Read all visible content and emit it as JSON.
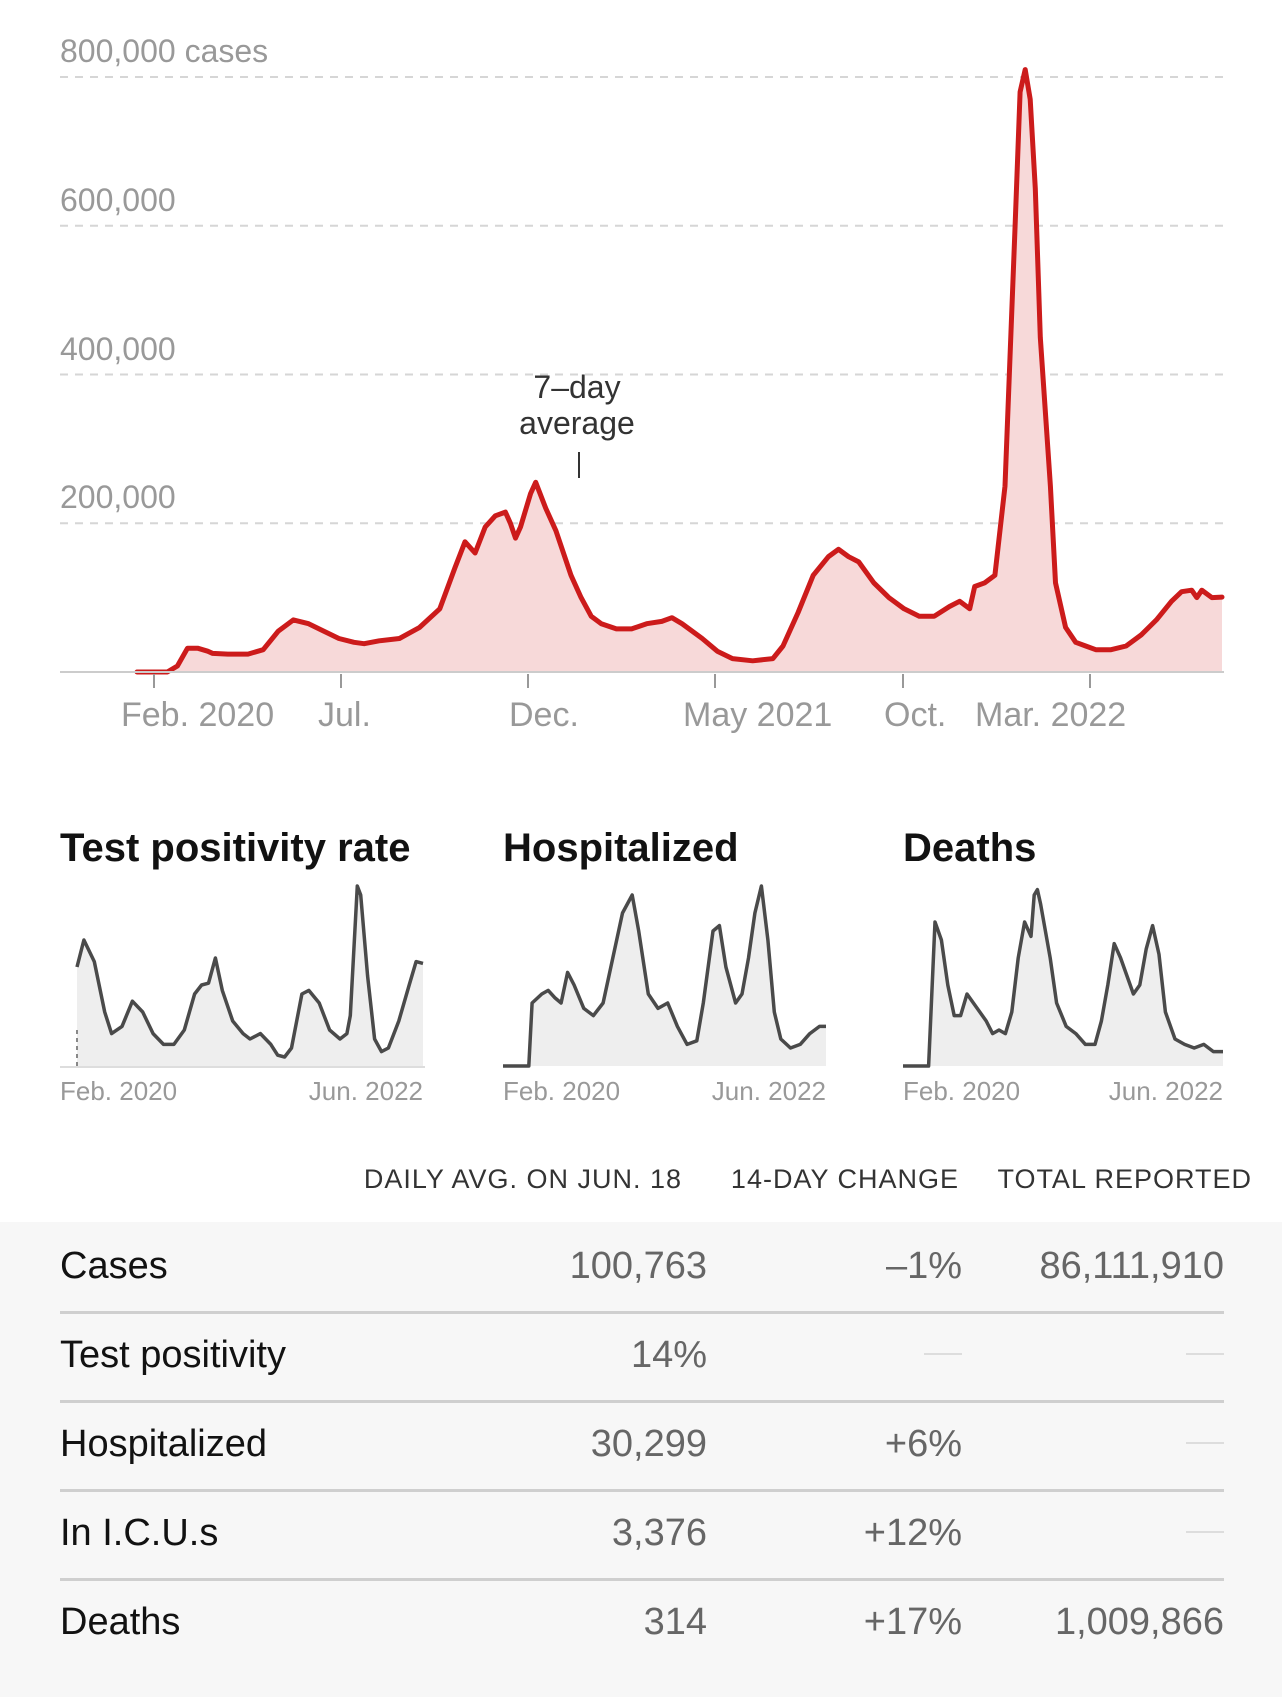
{
  "chart_data": [
    {
      "type": "area",
      "ylim": [
        0,
        800000
      ],
      "y_ticks": [
        {
          "value": 800000,
          "label": "800,000 cases"
        },
        {
          "value": 600000,
          "label": "600,000"
        },
        {
          "value": 400000,
          "label": "400,000"
        },
        {
          "value": 200000,
          "label": "200,000"
        }
      ],
      "x_ticks": [
        "Feb. 2020",
        "Jul.",
        "Dec.",
        "May 2021",
        "Oct.",
        "Mar. 2022"
      ],
      "annotation": {
        "line1": "7–day",
        "line2": "average"
      },
      "colors": {
        "line": "#cc1b1b",
        "fill": "#f7d9d9",
        "grid": "#d6d6d6",
        "tick_text": "#999999"
      },
      "points": [
        [
          0,
          0
        ],
        [
          0.04,
          0
        ],
        [
          0.06,
          0
        ],
        [
          0.08,
          8000
        ],
        [
          0.1,
          32000
        ],
        [
          0.12,
          32000
        ],
        [
          0.14,
          28000
        ],
        [
          0.15,
          25000
        ],
        [
          0.18,
          24000
        ],
        [
          0.22,
          24000
        ],
        [
          0.25,
          30000
        ],
        [
          0.28,
          55000
        ],
        [
          0.31,
          70000
        ],
        [
          0.34,
          65000
        ],
        [
          0.37,
          55000
        ],
        [
          0.4,
          45000
        ],
        [
          0.43,
          40000
        ],
        [
          0.45,
          38000
        ],
        [
          0.48,
          42000
        ],
        [
          0.52,
          45000
        ],
        [
          0.56,
          60000
        ],
        [
          0.6,
          85000
        ],
        [
          0.63,
          140000
        ],
        [
          0.65,
          175000
        ],
        [
          0.67,
          160000
        ],
        [
          0.69,
          195000
        ],
        [
          0.71,
          210000
        ],
        [
          0.73,
          215000
        ],
        [
          0.74,
          200000
        ],
        [
          0.75,
          180000
        ],
        [
          0.76,
          195000
        ],
        [
          0.78,
          240000
        ],
        [
          0.79,
          255000
        ],
        [
          0.81,
          220000
        ],
        [
          0.83,
          190000
        ],
        [
          0.86,
          130000
        ],
        [
          0.88,
          100000
        ],
        [
          0.9,
          75000
        ],
        [
          0.92,
          65000
        ],
        [
          0.95,
          58000
        ],
        [
          0.98,
          58000
        ],
        [
          1.01,
          65000
        ],
        [
          1.04,
          68000
        ],
        [
          1.06,
          73000
        ],
        [
          1.08,
          65000
        ],
        [
          1.12,
          45000
        ],
        [
          1.15,
          28000
        ],
        [
          1.18,
          18000
        ],
        [
          1.22,
          15000
        ],
        [
          1.26,
          18000
        ],
        [
          1.28,
          35000
        ],
        [
          1.31,
          80000
        ],
        [
          1.34,
          130000
        ],
        [
          1.37,
          155000
        ],
        [
          1.39,
          165000
        ],
        [
          1.41,
          155000
        ],
        [
          1.43,
          148000
        ],
        [
          1.46,
          120000
        ],
        [
          1.49,
          100000
        ],
        [
          1.52,
          85000
        ],
        [
          1.55,
          75000
        ],
        [
          1.58,
          75000
        ],
        [
          1.61,
          88000
        ],
        [
          1.63,
          95000
        ],
        [
          1.65,
          85000
        ],
        [
          1.66,
          115000
        ],
        [
          1.68,
          120000
        ],
        [
          1.7,
          130000
        ],
        [
          1.72,
          250000
        ],
        [
          1.74,
          600000
        ],
        [
          1.75,
          780000
        ],
        [
          1.76,
          810000
        ],
        [
          1.77,
          770000
        ],
        [
          1.78,
          650000
        ],
        [
          1.79,
          450000
        ],
        [
          1.81,
          250000
        ],
        [
          1.82,
          120000
        ],
        [
          1.84,
          60000
        ],
        [
          1.86,
          40000
        ],
        [
          1.88,
          35000
        ],
        [
          1.9,
          30000
        ],
        [
          1.93,
          30000
        ],
        [
          1.96,
          35000
        ],
        [
          1.99,
          50000
        ],
        [
          2.02,
          70000
        ],
        [
          2.05,
          95000
        ],
        [
          2.07,
          108000
        ],
        [
          2.09,
          110000
        ],
        [
          2.1,
          100000
        ],
        [
          2.11,
          110000
        ],
        [
          2.13,
          100000
        ],
        [
          2.15,
          100763
        ]
      ],
      "x_domain": [
        -0.03,
        2.15
      ]
    },
    {
      "type": "area",
      "title": "Test positivity rate",
      "x_ticks": [
        "Feb. 2020",
        "Jun. 2022"
      ],
      "ylim": [
        0,
        100
      ],
      "colors": {
        "line": "#4a4a4a",
        "fill": "#eeeeee"
      },
      "points": [
        [
          0,
          55
        ],
        [
          0.02,
          70
        ],
        [
          0.05,
          58
        ],
        [
          0.08,
          30
        ],
        [
          0.1,
          18
        ],
        [
          0.13,
          22
        ],
        [
          0.16,
          36
        ],
        [
          0.19,
          30
        ],
        [
          0.22,
          18
        ],
        [
          0.25,
          12
        ],
        [
          0.28,
          12
        ],
        [
          0.31,
          20
        ],
        [
          0.34,
          40
        ],
        [
          0.36,
          45
        ],
        [
          0.38,
          46
        ],
        [
          0.4,
          60
        ],
        [
          0.42,
          42
        ],
        [
          0.45,
          25
        ],
        [
          0.48,
          18
        ],
        [
          0.5,
          15
        ],
        [
          0.53,
          18
        ],
        [
          0.56,
          12
        ],
        [
          0.58,
          6
        ],
        [
          0.6,
          5
        ],
        [
          0.62,
          10
        ],
        [
          0.65,
          40
        ],
        [
          0.67,
          42
        ],
        [
          0.7,
          35
        ],
        [
          0.73,
          20
        ],
        [
          0.76,
          15
        ],
        [
          0.78,
          18
        ],
        [
          0.79,
          28
        ],
        [
          0.81,
          100
        ],
        [
          0.82,
          95
        ],
        [
          0.84,
          50
        ],
        [
          0.86,
          15
        ],
        [
          0.88,
          8
        ],
        [
          0.9,
          10
        ],
        [
          0.93,
          25
        ],
        [
          0.96,
          45
        ],
        [
          0.98,
          58
        ],
        [
          1,
          57
        ]
      ]
    },
    {
      "type": "area",
      "title": "Hospitalized",
      "x_ticks": [
        "Feb. 2020",
        "Jun. 2022"
      ],
      "ylim": [
        0,
        100
      ],
      "colors": {
        "line": "#4a4a4a",
        "fill": "#eeeeee"
      },
      "points": [
        [
          0,
          0
        ],
        [
          0.08,
          0
        ],
        [
          0.09,
          35
        ],
        [
          0.12,
          40
        ],
        [
          0.14,
          42
        ],
        [
          0.16,
          38
        ],
        [
          0.18,
          35
        ],
        [
          0.2,
          52
        ],
        [
          0.22,
          45
        ],
        [
          0.25,
          32
        ],
        [
          0.28,
          28
        ],
        [
          0.31,
          35
        ],
        [
          0.34,
          60
        ],
        [
          0.37,
          85
        ],
        [
          0.4,
          95
        ],
        [
          0.42,
          75
        ],
        [
          0.45,
          40
        ],
        [
          0.48,
          32
        ],
        [
          0.51,
          35
        ],
        [
          0.54,
          22
        ],
        [
          0.57,
          12
        ],
        [
          0.6,
          14
        ],
        [
          0.62,
          35
        ],
        [
          0.65,
          75
        ],
        [
          0.67,
          78
        ],
        [
          0.69,
          55
        ],
        [
          0.72,
          35
        ],
        [
          0.74,
          40
        ],
        [
          0.76,
          60
        ],
        [
          0.78,
          85
        ],
        [
          0.8,
          100
        ],
        [
          0.82,
          70
        ],
        [
          0.84,
          30
        ],
        [
          0.86,
          15
        ],
        [
          0.89,
          10
        ],
        [
          0.92,
          12
        ],
        [
          0.95,
          18
        ],
        [
          0.98,
          22
        ],
        [
          1,
          22
        ]
      ]
    },
    {
      "type": "area",
      "title": "Deaths",
      "x_ticks": [
        "Feb. 2020",
        "Jun. 2022"
      ],
      "ylim": [
        0,
        100
      ],
      "colors": {
        "line": "#4a4a4a",
        "fill": "#eeeeee"
      },
      "points": [
        [
          0,
          0
        ],
        [
          0.08,
          0
        ],
        [
          0.1,
          80
        ],
        [
          0.12,
          70
        ],
        [
          0.14,
          45
        ],
        [
          0.16,
          28
        ],
        [
          0.18,
          28
        ],
        [
          0.2,
          40
        ],
        [
          0.22,
          35
        ],
        [
          0.24,
          30
        ],
        [
          0.26,
          25
        ],
        [
          0.28,
          18
        ],
        [
          0.3,
          20
        ],
        [
          0.32,
          18
        ],
        [
          0.34,
          30
        ],
        [
          0.36,
          60
        ],
        [
          0.38,
          80
        ],
        [
          0.4,
          72
        ],
        [
          0.41,
          95
        ],
        [
          0.42,
          98
        ],
        [
          0.43,
          90
        ],
        [
          0.45,
          70
        ],
        [
          0.46,
          60
        ],
        [
          0.48,
          35
        ],
        [
          0.51,
          22
        ],
        [
          0.54,
          18
        ],
        [
          0.57,
          12
        ],
        [
          0.6,
          12
        ],
        [
          0.62,
          25
        ],
        [
          0.64,
          45
        ],
        [
          0.66,
          68
        ],
        [
          0.68,
          60
        ],
        [
          0.7,
          50
        ],
        [
          0.72,
          40
        ],
        [
          0.74,
          45
        ],
        [
          0.76,
          65
        ],
        [
          0.78,
          78
        ],
        [
          0.8,
          62
        ],
        [
          0.82,
          30
        ],
        [
          0.85,
          15
        ],
        [
          0.88,
          12
        ],
        [
          0.91,
          10
        ],
        [
          0.94,
          12
        ],
        [
          0.97,
          8
        ],
        [
          1,
          8
        ]
      ]
    }
  ],
  "columns": {
    "daily_avg": "DAILY AVG. ON JUN. 18",
    "change": "14-DAY CHANGE",
    "total": "TOTAL REPORTED"
  },
  "rows": [
    {
      "label": "Cases",
      "daily_avg": "100,763",
      "change": "–1%",
      "total": "86,111,910"
    },
    {
      "label": "Test positivity",
      "daily_avg": "14%",
      "change": "",
      "total": ""
    },
    {
      "label": "Hospitalized",
      "daily_avg": "30,299",
      "change": "+6%",
      "total": ""
    },
    {
      "label": "In I.C.U.s",
      "daily_avg": "3,376",
      "change": "+12%",
      "total": ""
    },
    {
      "label": "Deaths",
      "daily_avg": "314",
      "change": "+17%",
      "total": "1,009,866"
    }
  ]
}
